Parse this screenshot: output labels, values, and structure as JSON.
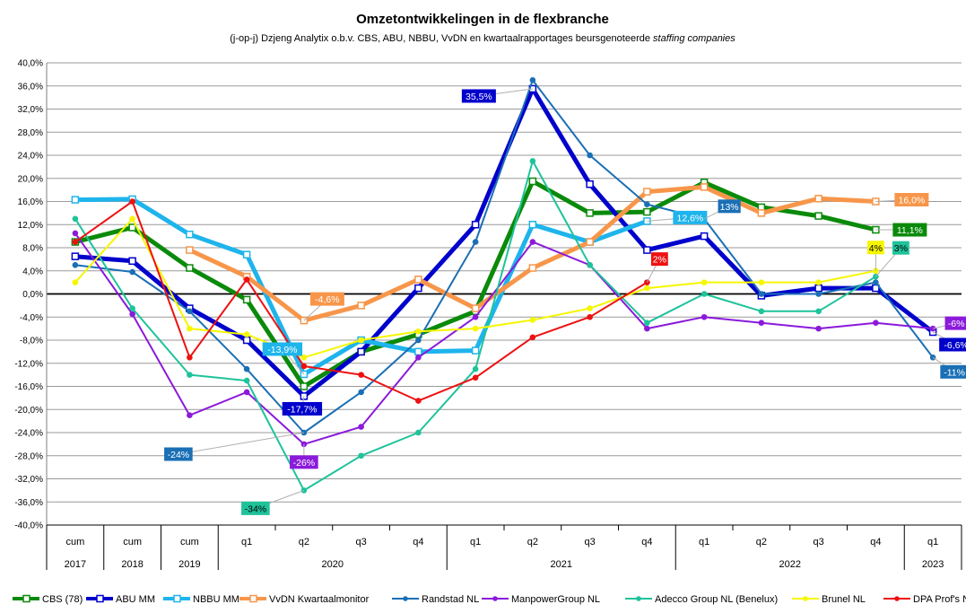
{
  "chart_data": {
    "type": "line",
    "title": "Omzetontwikkelingen in de flexbranche",
    "subtitle_main": "(j-op-j) Dzjeng Analytix o.b.v. CBS, ABU, NBBU, VvDN en kwartaalrapportages beursgenoteerde ",
    "subtitle_italic": "staffing companies",
    "ylim": [
      -0.4,
      0.4
    ],
    "y_ticks": [
      "40,0%",
      "36,0%",
      "32,0%",
      "28,0%",
      "24,0%",
      "20,0%",
      "16,0%",
      "12,0%",
      "8,0%",
      "4,0%",
      "0,0%",
      "-4,0%",
      "-8,0%",
      "-12,0%",
      "-16,0%",
      "-20,0%",
      "-24,0%",
      "-28,0%",
      "-32,0%",
      "-36,0%",
      "-40,0%"
    ],
    "grid": true,
    "categories": [
      "cum",
      "cum",
      "cum",
      "q1",
      "q2",
      "q3",
      "q4",
      "q1",
      "q2",
      "q3",
      "q4",
      "q1",
      "q2",
      "q3",
      "q4",
      "q1"
    ],
    "groups": [
      {
        "label": "2017",
        "span": 1
      },
      {
        "label": "2018",
        "span": 1
      },
      {
        "label": "2019",
        "span": 1
      },
      {
        "label": "2020",
        "span": 4
      },
      {
        "label": "2021",
        "span": 4
      },
      {
        "label": "2022",
        "span": 4
      },
      {
        "label": "2023",
        "span": 1
      }
    ],
    "legend_position": "bottom",
    "series": [
      {
        "name": "CBS (78)",
        "color": "#0a8a0a",
        "width": 5,
        "marker": "square",
        "values": [
          0.09,
          0.115,
          0.045,
          -0.01,
          -0.16,
          -0.1,
          -0.07,
          -0.03,
          0.195,
          0.14,
          0.142,
          0.193,
          0.15,
          0.135,
          0.111,
          null
        ]
      },
      {
        "name": "ABU MM",
        "color": "#0000cc",
        "width": 5,
        "marker": "square",
        "values": [
          0.065,
          0.057,
          -0.025,
          -0.08,
          -0.177,
          -0.1,
          0.01,
          0.12,
          0.355,
          0.19,
          0.076,
          0.1,
          -0.003,
          0.01,
          0.01,
          -0.066
        ]
      },
      {
        "name": "NBBU MM",
        "color": "#1eb4ec",
        "width": 5,
        "marker": "square",
        "values": [
          0.163,
          0.164,
          0.103,
          0.068,
          -0.139,
          -0.08,
          -0.1,
          -0.098,
          0.12,
          0.09,
          0.126,
          null,
          null,
          null,
          null,
          null
        ]
      },
      {
        "name": "VvDN Kwartaalmonitor",
        "color": "#f7964a",
        "width": 5,
        "marker": "square",
        "values": [
          null,
          null,
          0.076,
          0.03,
          -0.046,
          -0.02,
          0.025,
          -0.025,
          0.045,
          0.09,
          0.177,
          0.185,
          0.14,
          0.165,
          0.16,
          null
        ]
      },
      {
        "name": "Randstad NL",
        "color": "#1a6fb5",
        "width": 2,
        "marker": "circle",
        "values": [
          0.05,
          0.038,
          -0.03,
          -0.13,
          -0.24,
          -0.17,
          -0.08,
          0.09,
          0.37,
          0.24,
          0.155,
          0.13,
          0.0,
          0.0,
          0.02,
          -0.11
        ]
      },
      {
        "name": "ManpowerGroup NL",
        "color": "#8b1adb",
        "width": 2,
        "marker": "circle",
        "values": [
          0.105,
          -0.035,
          -0.21,
          -0.17,
          -0.26,
          -0.23,
          -0.11,
          -0.04,
          0.09,
          0.05,
          -0.06,
          -0.04,
          -0.05,
          -0.06,
          -0.05,
          -0.06
        ]
      },
      {
        "name": "Adecco Group NL (Benelux)",
        "color": "#1ec39a",
        "width": 2,
        "marker": "circle",
        "values": [
          0.13,
          -0.025,
          -0.14,
          -0.15,
          -0.34,
          -0.28,
          -0.24,
          -0.13,
          0.23,
          0.05,
          -0.05,
          0.0,
          -0.03,
          -0.03,
          0.03,
          null
        ]
      },
      {
        "name": "Brunel NL",
        "color": "#f6f600",
        "width": 2,
        "marker": "circle",
        "values": [
          0.02,
          0.13,
          -0.06,
          -0.07,
          -0.11,
          -0.08,
          -0.065,
          -0.06,
          -0.045,
          -0.025,
          0.01,
          0.02,
          0.02,
          0.02,
          0.04,
          null
        ]
      },
      {
        "name": "DPA Prof's NL",
        "color": "#ee1111",
        "width": 2,
        "marker": "circle",
        "values": [
          0.09,
          0.16,
          -0.11,
          0.025,
          -0.125,
          -0.14,
          -0.185,
          -0.145,
          -0.075,
          -0.04,
          0.02,
          null,
          null,
          null,
          null,
          null
        ]
      }
    ],
    "annotations": [
      {
        "text": "35,5%",
        "series": "ABU MM",
        "index": 8,
        "bg": "#0000cc",
        "fg": "#ffffff"
      },
      {
        "text": "12,6%",
        "series": "NBBU MM",
        "index": 10,
        "bg": "#1eb4ec",
        "fg": "#ffffff"
      },
      {
        "text": "13%",
        "series": "Randstad NL",
        "index": 11,
        "bg": "#1a6fb5",
        "fg": "#ffffff"
      },
      {
        "text": "16,0%",
        "series": "VvDN Kwartaalmonitor",
        "index": 14,
        "bg": "#f7964a",
        "fg": "#ffffff"
      },
      {
        "text": "11,1%",
        "series": "CBS (78)",
        "index": 14,
        "bg": "#0a8a0a",
        "fg": "#ffffff"
      },
      {
        "text": "4%",
        "series": "Brunel NL",
        "index": 14,
        "bg": "#f6f600",
        "fg": "#000000"
      },
      {
        "text": "3%",
        "series": "Adecco Group NL (Benelux)",
        "index": 14,
        "bg": "#1ec39a",
        "fg": "#000000"
      },
      {
        "text": "2%",
        "series": "DPA Prof's NL",
        "index": 10,
        "bg": "#ee1111",
        "fg": "#ffffff"
      },
      {
        "text": "-13,9%",
        "series": "NBBU MM",
        "index": 4,
        "bg": "#1eb4ec",
        "fg": "#ffffff"
      },
      {
        "text": "-4,6%",
        "series": "VvDN Kwartaalmonitor",
        "index": 4,
        "bg": "#f7964a",
        "fg": "#ffffff"
      },
      {
        "text": "-17,7%",
        "series": "ABU MM",
        "index": 4,
        "bg": "#0000cc",
        "fg": "#ffffff"
      },
      {
        "text": "-24%",
        "series": "Randstad NL",
        "index": 4,
        "bg": "#1a6fb5",
        "fg": "#ffffff"
      },
      {
        "text": "-26%",
        "series": "ManpowerGroup NL",
        "index": 4,
        "bg": "#8b1adb",
        "fg": "#ffffff"
      },
      {
        "text": "-34%",
        "series": "Adecco Group NL (Benelux)",
        "index": 4,
        "bg": "#1ec39a",
        "fg": "#000000"
      },
      {
        "text": "-6%",
        "series": "ManpowerGroup NL",
        "index": 15,
        "bg": "#8b1adb",
        "fg": "#ffffff"
      },
      {
        "text": "-6,6%",
        "series": "ABU MM",
        "index": 15,
        "bg": "#0000cc",
        "fg": "#ffffff"
      },
      {
        "text": "-11%",
        "series": "Randstad NL",
        "index": 15,
        "bg": "#1a6fb5",
        "fg": "#ffffff"
      }
    ]
  }
}
